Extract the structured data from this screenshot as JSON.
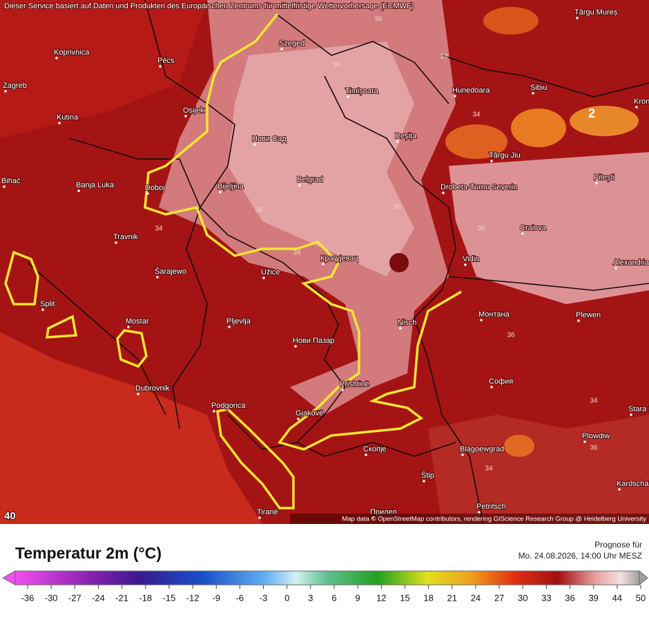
{
  "header": {
    "attribution": "Dieser Service basiert auf Daten und Produkten des Europäischen Zentrums für mittelfristige Wettervorhersage (ECMWF)"
  },
  "map": {
    "cities": [
      "Koprivnica",
      "Pécs",
      "Zagreb",
      "Osijek",
      "Kutina",
      "Szeged",
      "Timișoara",
      "Hunedoara",
      "Sibiu",
      "Târgu Mureș",
      "Târgu Jiu",
      "Reșița",
      "Нови Сад",
      "Belgrad",
      "Drobeta-Turnu Severin",
      "Pitești",
      "Banja Luka",
      "Doboj",
      "Bijeljina",
      "Bihać",
      "Travnik",
      "Šarajewo",
      "Užice",
      "Крагујевац",
      "Craiova",
      "Vidin",
      "Alexandria",
      "Split",
      "Mostar",
      "Pljevlja",
      "Нови Пазар",
      "Nisch",
      "Монтана",
      "Plewen",
      "Dubrovnik",
      "Prishtinë",
      "София",
      "Podgorica",
      "Gjakovë",
      "Скопје",
      "Blagoewgrad",
      "Plowdiw",
      "Štip",
      "Kardschali",
      "Petritsch",
      "Tiranë",
      "Прилеп",
      "Stara Zagora",
      "Kronstadt"
    ],
    "contour_labels": [
      36,
      34,
      36,
      34,
      36,
      36,
      34,
      34,
      36,
      36,
      34,
      36,
      34,
      2
    ],
    "corner_value": 40,
    "credit": "Map data © OpenStreetMap contributors, rendering GIScience Research Group @ Heidelberg University"
  },
  "legend": {
    "title": "Temperatur 2m (°C)",
    "forecast_label": "Prognose für",
    "forecast_time": "Mo. 24.08.2026, 14:00 Uhr MESZ",
    "ticks": [
      -36,
      -30,
      -27,
      -24,
      -21,
      -18,
      -15,
      -12,
      -9,
      -6,
      -3,
      0,
      3,
      6,
      9,
      12,
      15,
      18,
      21,
      24,
      27,
      30,
      33,
      36,
      39,
      44,
      50
    ]
  }
}
